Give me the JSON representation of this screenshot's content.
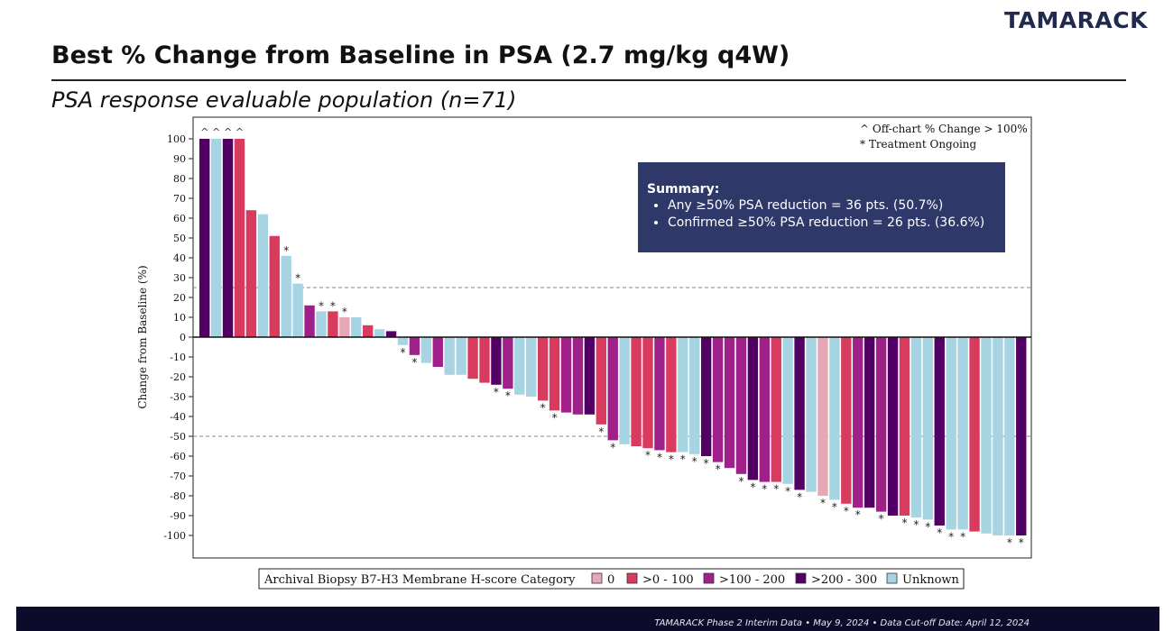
{
  "brand": {
    "logo_text": "TAMARACK"
  },
  "slide": {
    "title": "Best % Change from Baseline in PSA (2.7 mg/kg q4W)",
    "subtitle": "PSA response evaluable population (n=71)"
  },
  "summary": {
    "heading": "Summary:",
    "bullets": [
      "Any ≥50% PSA reduction = 36 pts. (50.7%)",
      "Confirmed ≥50% PSA reduction = 26 pts. (36.6%)"
    ]
  },
  "footer": {
    "text": "TAMARACK Phase 2 Interim Data • May 9, 2024 • Data Cut-off Date: April 12, 2024"
  },
  "chart_data": {
    "type": "bar",
    "title": "",
    "xlabel": "",
    "ylabel": "Change from Baseline (%)",
    "ylim": [
      -110,
      100
    ],
    "yticks": [
      100,
      90,
      80,
      70,
      60,
      50,
      40,
      30,
      20,
      10,
      0,
      -10,
      -20,
      -30,
      -40,
      -50,
      -60,
      -70,
      -80,
      -90,
      -100
    ],
    "reference_lines": [
      25,
      -50
    ],
    "notes": [
      "^ Off-chart % Change > 100%",
      "* Treatment Ongoing"
    ],
    "off_chart_marker": "^",
    "ongoing_marker": "*",
    "legend": {
      "title": "Archival Biopsy B7-H3 Membrane H-score Category",
      "position": "bottom",
      "entries": [
        {
          "label": "0",
          "category": "0",
          "color": "#e5a8b6"
        },
        {
          "label": ">0 - 100",
          "category": "low",
          "color": "#d83b5e"
        },
        {
          "label": ">100 - 200",
          "category": "mid",
          "color": "#a0208a"
        },
        {
          "label": ">200 - 300",
          "category": "high",
          "color": "#520063"
        },
        {
          "label": "Unknown",
          "category": "unk",
          "color": "#a6d4e3"
        }
      ]
    },
    "bars": [
      {
        "value": 100,
        "category": "high",
        "off_chart": true,
        "ongoing": false
      },
      {
        "value": 100,
        "category": "unk",
        "off_chart": true,
        "ongoing": false
      },
      {
        "value": 100,
        "category": "high",
        "off_chart": true,
        "ongoing": false
      },
      {
        "value": 100,
        "category": "low",
        "off_chart": true,
        "ongoing": false
      },
      {
        "value": 64,
        "category": "low",
        "off_chart": false,
        "ongoing": false
      },
      {
        "value": 62,
        "category": "unk",
        "off_chart": false,
        "ongoing": false
      },
      {
        "value": 51,
        "category": "low",
        "off_chart": false,
        "ongoing": false
      },
      {
        "value": 41,
        "category": "unk",
        "off_chart": false,
        "ongoing": true
      },
      {
        "value": 27,
        "category": "unk",
        "off_chart": false,
        "ongoing": true
      },
      {
        "value": 16,
        "category": "mid",
        "off_chart": false,
        "ongoing": false
      },
      {
        "value": 13,
        "category": "unk",
        "off_chart": false,
        "ongoing": true
      },
      {
        "value": 13,
        "category": "low",
        "off_chart": false,
        "ongoing": true
      },
      {
        "value": 10,
        "category": "0",
        "off_chart": false,
        "ongoing": true
      },
      {
        "value": 10,
        "category": "unk",
        "off_chart": false,
        "ongoing": false
      },
      {
        "value": 6,
        "category": "low",
        "off_chart": false,
        "ongoing": false
      },
      {
        "value": 4,
        "category": "unk",
        "off_chart": false,
        "ongoing": false
      },
      {
        "value": 3,
        "category": "high",
        "off_chart": false,
        "ongoing": false
      },
      {
        "value": -4,
        "category": "unk",
        "off_chart": false,
        "ongoing": true
      },
      {
        "value": -9,
        "category": "mid",
        "off_chart": false,
        "ongoing": true
      },
      {
        "value": -13,
        "category": "unk",
        "off_chart": false,
        "ongoing": false
      },
      {
        "value": -15,
        "category": "mid",
        "off_chart": false,
        "ongoing": false
      },
      {
        "value": -19,
        "category": "unk",
        "off_chart": false,
        "ongoing": false
      },
      {
        "value": -19,
        "category": "unk",
        "off_chart": false,
        "ongoing": false
      },
      {
        "value": -21,
        "category": "low",
        "off_chart": false,
        "ongoing": false
      },
      {
        "value": -23,
        "category": "low",
        "off_chart": false,
        "ongoing": false
      },
      {
        "value": -24,
        "category": "high",
        "off_chart": false,
        "ongoing": true
      },
      {
        "value": -26,
        "category": "mid",
        "off_chart": false,
        "ongoing": true
      },
      {
        "value": -29,
        "category": "unk",
        "off_chart": false,
        "ongoing": false
      },
      {
        "value": -30,
        "category": "unk",
        "off_chart": false,
        "ongoing": false
      },
      {
        "value": -32,
        "category": "low",
        "off_chart": false,
        "ongoing": true
      },
      {
        "value": -37,
        "category": "low",
        "off_chart": false,
        "ongoing": true
      },
      {
        "value": -38,
        "category": "mid",
        "off_chart": false,
        "ongoing": false
      },
      {
        "value": -39,
        "category": "mid",
        "off_chart": false,
        "ongoing": false
      },
      {
        "value": -39,
        "category": "high",
        "off_chart": false,
        "ongoing": false
      },
      {
        "value": -44,
        "category": "low",
        "off_chart": false,
        "ongoing": true
      },
      {
        "value": -52,
        "category": "mid",
        "off_chart": false,
        "ongoing": true
      },
      {
        "value": -54,
        "category": "unk",
        "off_chart": false,
        "ongoing": false
      },
      {
        "value": -55,
        "category": "low",
        "off_chart": false,
        "ongoing": false
      },
      {
        "value": -56,
        "category": "low",
        "off_chart": false,
        "ongoing": true
      },
      {
        "value": -57,
        "category": "mid",
        "off_chart": false,
        "ongoing": true
      },
      {
        "value": -58,
        "category": "low",
        "off_chart": false,
        "ongoing": true
      },
      {
        "value": -58,
        "category": "unk",
        "off_chart": false,
        "ongoing": true
      },
      {
        "value": -59,
        "category": "unk",
        "off_chart": false,
        "ongoing": true
      },
      {
        "value": -60,
        "category": "high",
        "off_chart": false,
        "ongoing": true
      },
      {
        "value": -63,
        "category": "mid",
        "off_chart": false,
        "ongoing": true
      },
      {
        "value": -66,
        "category": "mid",
        "off_chart": false,
        "ongoing": false
      },
      {
        "value": -69,
        "category": "mid",
        "off_chart": false,
        "ongoing": true
      },
      {
        "value": -72,
        "category": "high",
        "off_chart": false,
        "ongoing": true
      },
      {
        "value": -73,
        "category": "mid",
        "off_chart": false,
        "ongoing": true
      },
      {
        "value": -73,
        "category": "low",
        "off_chart": false,
        "ongoing": true
      },
      {
        "value": -74,
        "category": "unk",
        "off_chart": false,
        "ongoing": true
      },
      {
        "value": -77,
        "category": "high",
        "off_chart": false,
        "ongoing": true
      },
      {
        "value": -78,
        "category": "unk",
        "off_chart": false,
        "ongoing": false
      },
      {
        "value": -80,
        "category": "0",
        "off_chart": false,
        "ongoing": true
      },
      {
        "value": -82,
        "category": "unk",
        "off_chart": false,
        "ongoing": true
      },
      {
        "value": -84,
        "category": "low",
        "off_chart": false,
        "ongoing": true
      },
      {
        "value": -86,
        "category": "mid",
        "off_chart": false,
        "ongoing": true
      },
      {
        "value": -86,
        "category": "high",
        "off_chart": false,
        "ongoing": false
      },
      {
        "value": -88,
        "category": "mid",
        "off_chart": false,
        "ongoing": true
      },
      {
        "value": -90,
        "category": "high",
        "off_chart": false,
        "ongoing": false
      },
      {
        "value": -90,
        "category": "low",
        "off_chart": false,
        "ongoing": true
      },
      {
        "value": -91,
        "category": "unk",
        "off_chart": false,
        "ongoing": true
      },
      {
        "value": -92,
        "category": "unk",
        "off_chart": false,
        "ongoing": true
      },
      {
        "value": -95,
        "category": "high",
        "off_chart": false,
        "ongoing": true
      },
      {
        "value": -97,
        "category": "unk",
        "off_chart": false,
        "ongoing": true
      },
      {
        "value": -97,
        "category": "unk",
        "off_chart": false,
        "ongoing": true
      },
      {
        "value": -98,
        "category": "low",
        "off_chart": false,
        "ongoing": false
      },
      {
        "value": -99,
        "category": "unk",
        "off_chart": false,
        "ongoing": false
      },
      {
        "value": -100,
        "category": "unk",
        "off_chart": false,
        "ongoing": false
      },
      {
        "value": -100,
        "category": "unk",
        "off_chart": false,
        "ongoing": true
      },
      {
        "value": -100,
        "category": "high",
        "off_chart": false,
        "ongoing": true
      }
    ]
  }
}
